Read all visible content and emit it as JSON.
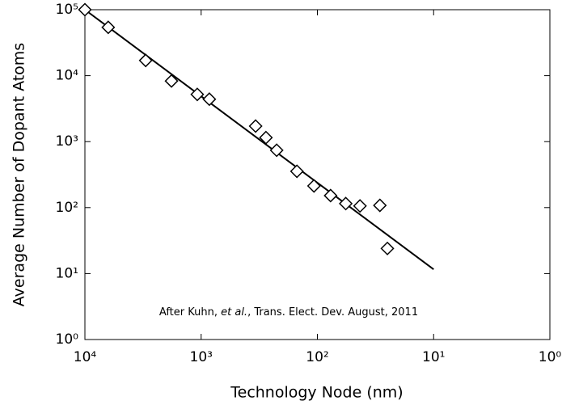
{
  "chart_data": {
    "type": "scatter",
    "xlabel": "Technology Node (nm)",
    "ylabel": "Average Number of Dopant Atoms",
    "annotation": [
      "After Kuhn, ",
      "et al.",
      ", Trans. Elect. Dev. August, 2011"
    ],
    "xscale": "log",
    "yscale": "log",
    "xlim": [
      10000,
      1
    ],
    "ylim": [
      1,
      100000
    ],
    "xticks": [
      {
        "value": 10000,
        "label": "10⁴"
      },
      {
        "value": 1000,
        "label": "10³"
      },
      {
        "value": 100,
        "label": "10²"
      },
      {
        "value": 10,
        "label": "10¹"
      },
      {
        "value": 1,
        "label": "10⁰"
      }
    ],
    "yticks": [
      {
        "value": 1,
        "label": "10⁰"
      },
      {
        "value": 10,
        "label": "10¹"
      },
      {
        "value": 100,
        "label": "10²"
      },
      {
        "value": 1000,
        "label": "10³"
      },
      {
        "value": 10000,
        "label": "10⁴"
      },
      {
        "value": 100000,
        "label": "10⁵"
      }
    ],
    "color": "#000000",
    "x": [
      10000,
      6300,
      3000,
      1800,
      1080,
      850,
      340,
      277,
      224,
      150,
      107,
      77,
      57,
      43,
      29,
      25
    ],
    "values": [
      100000,
      54000,
      17000,
      8300,
      5200,
      4400,
      1720,
      1150,
      740,
      355,
      213,
      152,
      115,
      106,
      108,
      24
    ],
    "fit": {
      "x": [
        10000,
        10
      ],
      "y": [
        100000,
        11.6
      ]
    }
  }
}
